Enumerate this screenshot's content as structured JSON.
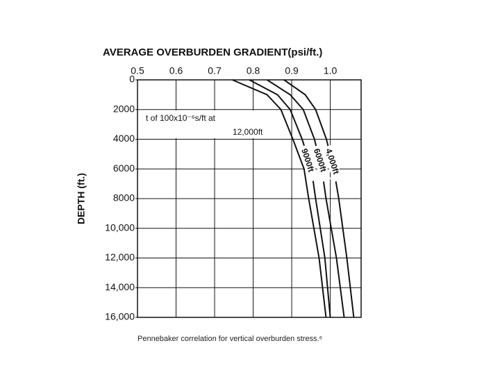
{
  "chart_data": {
    "type": "line",
    "title": "AVERAGE OVERBURDEN GRADIENT(psi/ft.)",
    "y_label": "DEPTH (ft.)",
    "annotation": [
      "t of 100x10⁻⁶s/ft at",
      "12,000ft"
    ],
    "caption": "Pennebaker correlation for vertical overburden stress.⁶",
    "depth": [
      0,
      1000,
      2000,
      4000,
      6000,
      8000,
      12000,
      16000
    ],
    "series": [
      {
        "color": "#111111",
        "values": [
          0.746,
          0.836,
          0.872,
          0.903,
          0.932,
          0.944,
          0.971,
          0.989
        ]
      },
      {
        "name": "9000ft",
        "color": "#111111",
        "values": [
          0.79,
          0.863,
          0.896,
          0.927,
          0.951,
          0.962,
          0.986,
          1.0
        ]
      },
      {
        "name": "6000ft",
        "color": "#111111",
        "values": [
          0.836,
          0.896,
          0.93,
          0.959,
          0.978,
          0.989,
          1.016,
          1.036
        ]
      },
      {
        "name": "4,000ft",
        "color": "#111111",
        "values": [
          0.88,
          0.935,
          0.962,
          0.99,
          1.009,
          1.022,
          1.043,
          1.061
        ]
      }
    ],
    "xlim": [
      0.5,
      1.08
    ],
    "xticks": [
      0.5,
      0.6,
      0.7,
      0.8,
      0.9,
      {
        "value": 1,
        "label": "1.0"
      }
    ],
    "ylim": [
      0,
      16000
    ],
    "yticks": [
      0,
      2000,
      4000,
      6000,
      8000,
      {
        "value": 10000,
        "label": "10,000"
      },
      {
        "value": 12000,
        "label": "12,000"
      },
      {
        "value": 14000,
        "label": "14,000"
      },
      {
        "value": 16000,
        "label": "16,000"
      }
    ],
    "grid": true
  }
}
